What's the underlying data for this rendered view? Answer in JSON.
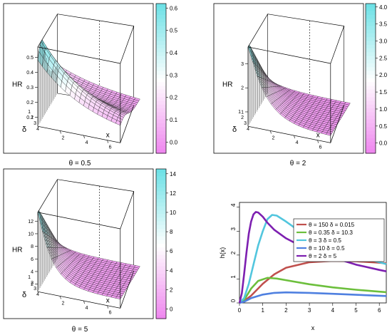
{
  "chart_data": [
    {
      "type": "surface",
      "caption": "θ = 0.5",
      "zlabel": "HR",
      "ylabel": "δ",
      "xlabel": "x",
      "z_ticks": [
        "0.1",
        "0.2",
        "0.3",
        "0.4",
        "0.5"
      ],
      "y_ticks": [
        "1",
        "2",
        "3",
        "4"
      ],
      "x_ticks": [
        "2",
        "4",
        "6"
      ],
      "colorbar_ticks": [
        "0.0",
        "0.1",
        "0.2",
        "0.3",
        "0.4",
        "0.5",
        "0.6"
      ],
      "colorbar_range": [
        -0.05,
        0.62
      ]
    },
    {
      "type": "surface",
      "caption": "θ = 2",
      "zlabel": "HR",
      "ylabel": "δ",
      "xlabel": "x",
      "z_ticks": [
        "1",
        "2",
        "3"
      ],
      "y_ticks": [
        "1",
        "2",
        "3",
        "4"
      ],
      "x_ticks": [
        "2",
        "4",
        "6"
      ],
      "colorbar_ticks": [
        "0.0",
        "0.5",
        "1.0",
        "1.5",
        "2.0",
        "2.5",
        "3.0",
        "3.5",
        "4.0"
      ],
      "colorbar_range": [
        -0.3,
        4.1
      ]
    },
    {
      "type": "surface",
      "caption": "θ = 5",
      "zlabel": "HR",
      "ylabel": "δ",
      "xlabel": "x",
      "z_ticks": [
        "2",
        "4",
        "6",
        "8",
        "10",
        "12"
      ],
      "y_ticks": [
        "1",
        "2",
        "3",
        "4"
      ],
      "x_ticks": [
        "2",
        "4",
        "6"
      ],
      "colorbar_ticks": [
        "0",
        "2",
        "4",
        "6",
        "8",
        "10",
        "12",
        "14"
      ],
      "colorbar_range": [
        -1,
        14.5
      ]
    },
    {
      "type": "line",
      "ylabel": "h(x)",
      "xlabel": "x",
      "xlim": [
        0,
        6.3
      ],
      "ylim": [
        0,
        4.2
      ],
      "x_ticks": [
        "0",
        "1",
        "2",
        "3",
        "4",
        "5",
        "6"
      ],
      "y_ticks": [
        "0",
        "1",
        "2",
        "3",
        "4"
      ],
      "legend_position": "top-right",
      "series": [
        {
          "name": "θ = 150  δ = 0.015",
          "color": "#c0504d",
          "x": [
            0,
            0.2,
            0.5,
            1,
            1.5,
            2,
            3,
            4,
            5,
            6,
            6.3
          ],
          "y": [
            0,
            0.08,
            0.3,
            0.8,
            1.2,
            1.47,
            1.7,
            1.76,
            1.74,
            1.68,
            1.65
          ]
        },
        {
          "name": "θ = 0.35  δ = 10.3",
          "color": "#6cbf3c",
          "x": [
            0,
            0.2,
            0.5,
            0.8,
            1.2,
            1.6,
            2,
            3,
            4,
            5,
            6,
            6.3
          ],
          "y": [
            0,
            0.12,
            0.6,
            0.92,
            1.05,
            1.02,
            0.95,
            0.78,
            0.65,
            0.55,
            0.47,
            0.45
          ]
        },
        {
          "name": "θ = 3  δ = 0.5",
          "color": "#52c6de",
          "x": [
            0,
            0.2,
            0.4,
            0.6,
            0.8,
            1,
            1.2,
            1.4,
            1.6,
            2,
            2.5,
            3,
            3.5,
            4,
            5,
            6,
            6.3
          ],
          "y": [
            0,
            0.2,
            0.8,
            1.6,
            2.4,
            3.0,
            3.5,
            3.68,
            3.65,
            3.4,
            3.05,
            2.75,
            2.5,
            2.3,
            1.95,
            1.7,
            1.62
          ]
        },
        {
          "name": "θ = 10  δ = 0.5",
          "color": "#4f80e0",
          "x": [
            0,
            0.2,
            0.5,
            1,
            1.5,
            2,
            3,
            4,
            5,
            6,
            6.3
          ],
          "y": [
            0,
            0.05,
            0.2,
            0.35,
            0.42,
            0.44,
            0.42,
            0.38,
            0.34,
            0.3,
            0.29
          ]
        },
        {
          "name": "θ = 2  δ = 5",
          "color": "#7d1fb0",
          "x": [
            0,
            0.1,
            0.2,
            0.3,
            0.4,
            0.5,
            0.6,
            0.7,
            0.8,
            1,
            1.2,
            1.5,
            2,
            2.5,
            3,
            3.5,
            4,
            5,
            6,
            6.3
          ],
          "y": [
            0,
            0.4,
            1.2,
            2.1,
            2.9,
            3.4,
            3.7,
            3.8,
            3.78,
            3.6,
            3.35,
            3.05,
            2.7,
            2.45,
            2.25,
            2.05,
            1.9,
            1.6,
            1.38,
            1.32
          ]
        }
      ]
    }
  ]
}
